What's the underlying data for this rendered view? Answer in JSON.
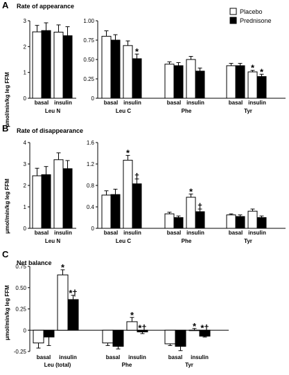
{
  "legend": {
    "items": [
      {
        "label": "Placebo",
        "color": "#ffffff"
      },
      {
        "label": "Prednisone",
        "color": "#000000"
      }
    ]
  },
  "ylabel": "μmol/min/kg leg FFM",
  "conditions": [
    "basal",
    "insulin"
  ],
  "colors": {
    "placebo": "#ffffff",
    "prednisone": "#000000",
    "stroke": "#000000"
  },
  "chart_data": [
    {
      "panel": "A",
      "title": "Rate of appearance",
      "type": "bar",
      "subplots": [
        {
          "group": "Leu N",
          "ylim": [
            0,
            3
          ],
          "yticks": [
            0,
            1,
            2,
            3
          ],
          "series": [
            {
              "name": "Placebo",
              "values": [
                2.57,
                2.56
              ],
              "errors": [
                0.25,
                0.28
              ]
            },
            {
              "name": "Prednisone",
              "values": [
                2.62,
                2.42
              ],
              "errors": [
                0.3,
                0.35
              ]
            }
          ],
          "annotations": []
        },
        {
          "group": "Leu C",
          "ylim": [
            0,
            1
          ],
          "yticks": [
            0,
            0.25,
            0.5,
            0.75,
            1.0
          ],
          "ytick_labels": [
            "0",
            "0.25",
            "0.50",
            "0.75",
            "1.00"
          ],
          "series": [
            {
              "name": "Placebo",
              "values": [
                0.8,
                0.68
              ],
              "errors": [
                0.07,
                0.06
              ]
            },
            {
              "name": "Prednisone",
              "values": [
                0.75,
                0.51
              ],
              "errors": [
                0.07,
                0.06
              ]
            }
          ],
          "annotations": [
            {
              "series": "Prednisone",
              "index": 1,
              "text": "*"
            }
          ]
        },
        {
          "group": "Phe",
          "series": [
            {
              "name": "Placebo",
              "values": [
                0.44,
                0.5
              ],
              "errors": [
                0.03,
                0.04
              ]
            },
            {
              "name": "Prednisone",
              "values": [
                0.42,
                0.35
              ],
              "errors": [
                0.04,
                0.04
              ]
            }
          ],
          "annotations": []
        },
        {
          "group": "Tyr",
          "series": [
            {
              "name": "Placebo",
              "values": [
                0.42,
                0.34
              ],
              "errors": [
                0.03,
                0.02
              ]
            },
            {
              "name": "Prednisone",
              "values": [
                0.42,
                0.28
              ],
              "errors": [
                0.03,
                0.03
              ]
            }
          ],
          "annotations": [
            {
              "series": "Placebo",
              "index": 1,
              "text": "*"
            },
            {
              "series": "Prednisone",
              "index": 1,
              "text": "*"
            }
          ]
        }
      ]
    },
    {
      "panel": "B",
      "title": "Rate of disappearance",
      "type": "bar",
      "subplots": [
        {
          "group": "Leu N",
          "ylim": [
            0,
            4
          ],
          "yticks": [
            0,
            1,
            2,
            3,
            4
          ],
          "series": [
            {
              "name": "Placebo",
              "values": [
                2.45,
                3.2
              ],
              "errors": [
                0.35,
                0.32
              ]
            },
            {
              "name": "Prednisone",
              "values": [
                2.5,
                2.78
              ],
              "errors": [
                0.38,
                0.38
              ]
            }
          ],
          "annotations": []
        },
        {
          "group": "Leu C",
          "ylim": [
            0,
            1.6
          ],
          "yticks": [
            0,
            0.4,
            0.8,
            1.2,
            1.6
          ],
          "ytick_labels": [
            "0",
            "0.4",
            "0.8",
            "1.2",
            "1.6"
          ],
          "series": [
            {
              "name": "Placebo",
              "values": [
                0.62,
                1.27
              ],
              "errors": [
                0.08,
                0.09
              ]
            },
            {
              "name": "Prednisone",
              "values": [
                0.63,
                0.83
              ],
              "errors": [
                0.1,
                0.09
              ]
            }
          ],
          "annotations": [
            {
              "series": "Placebo",
              "index": 1,
              "text": "*"
            },
            {
              "series": "Prednisone",
              "index": 1,
              "text": "†"
            }
          ]
        },
        {
          "group": "Phe",
          "series": [
            {
              "name": "Placebo",
              "values": [
                0.27,
                0.58
              ],
              "errors": [
                0.03,
                0.06
              ]
            },
            {
              "name": "Prednisone",
              "values": [
                0.2,
                0.31
              ],
              "errors": [
                0.03,
                0.05
              ]
            }
          ],
          "annotations": [
            {
              "series": "Placebo",
              "index": 1,
              "text": "*"
            },
            {
              "series": "Prednisone",
              "index": 1,
              "text": "†"
            }
          ]
        },
        {
          "group": "Tyr",
          "series": [
            {
              "name": "Placebo",
              "values": [
                0.25,
                0.32
              ],
              "errors": [
                0.02,
                0.04
              ]
            },
            {
              "name": "Prednisone",
              "values": [
                0.22,
                0.2
              ],
              "errors": [
                0.03,
                0.03
              ]
            }
          ],
          "annotations": []
        }
      ]
    },
    {
      "panel": "C",
      "title": "Net balance",
      "type": "bar",
      "ylim": [
        -0.25,
        0.75
      ],
      "yticks": [
        -0.25,
        0,
        0.25,
        0.5,
        0.75
      ],
      "ytick_labels": [
        "-0.25",
        "0",
        "0.25",
        "0.50",
        "0.75"
      ],
      "groups": [
        {
          "group": "Leu (total)",
          "series": [
            {
              "name": "Placebo",
              "values": [
                -0.15,
                0.65
              ],
              "errors": [
                0.06,
                0.06
              ]
            },
            {
              "name": "Prednisone",
              "values": [
                -0.08,
                0.36
              ],
              "errors": [
                0.1,
                0.05
              ]
            }
          ],
          "annotations": [
            {
              "series": "Placebo",
              "index": 1,
              "text": "*"
            },
            {
              "series": "Prednisone",
              "index": 1,
              "text": "*†"
            }
          ]
        },
        {
          "group": "Phe",
          "series": [
            {
              "name": "Placebo",
              "values": [
                -0.15,
                0.1
              ],
              "errors": [
                0.03,
                0.05
              ]
            },
            {
              "name": "Prednisone",
              "values": [
                -0.19,
                -0.02
              ],
              "errors": [
                0.03,
                0.02
              ]
            }
          ],
          "annotations": [
            {
              "series": "Placebo",
              "index": 1,
              "text": "*"
            },
            {
              "series": "Prednisone",
              "index": 1,
              "text": "*†"
            }
          ]
        },
        {
          "group": "Tyr",
          "series": [
            {
              "name": "Placebo",
              "values": [
                -0.16,
                0.0
              ],
              "errors": [
                0.02,
                0.02
              ]
            },
            {
              "name": "Prednisone",
              "values": [
                -0.19,
                -0.07
              ],
              "errors": [
                0.05,
                0.01
              ]
            }
          ],
          "annotations": [
            {
              "series": "Placebo",
              "index": 1,
              "text": "*"
            },
            {
              "series": "Prednisone",
              "index": 1,
              "text": "*†"
            }
          ]
        }
      ]
    }
  ]
}
